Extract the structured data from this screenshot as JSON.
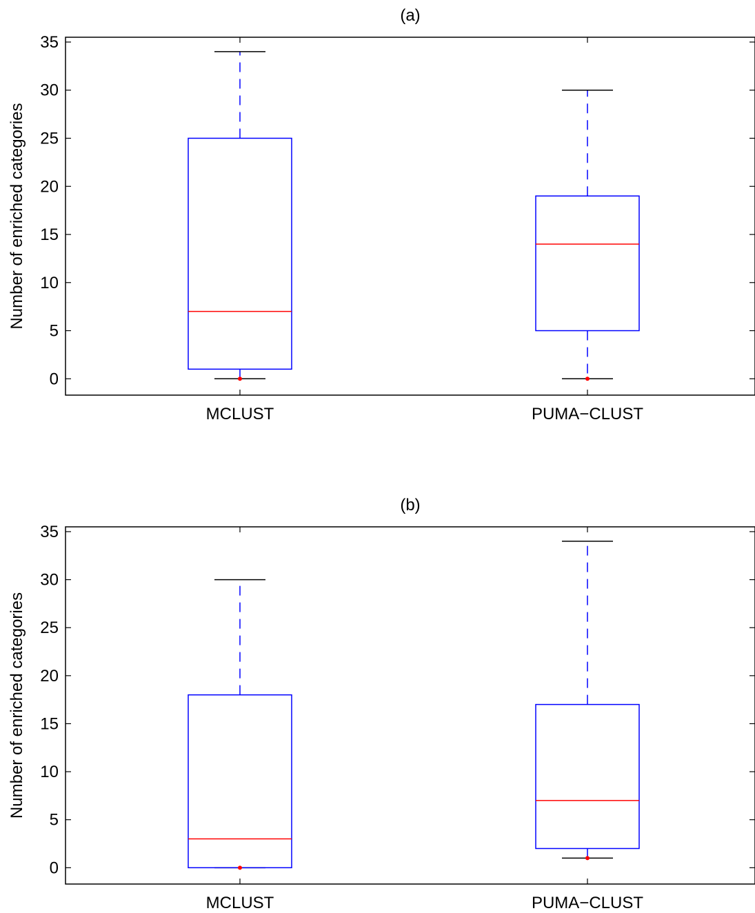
{
  "chart_data": [
    {
      "type": "box",
      "title": "(a)",
      "xlabel": "",
      "ylabel": "Number of enriched categories",
      "categories": [
        "MCLUST",
        "PUMA−CLUST"
      ],
      "ylim": [
        -1.7,
        35.5
      ],
      "yticks": [
        0,
        5,
        10,
        15,
        20,
        25,
        30,
        35
      ],
      "grid": false,
      "boxes": [
        {
          "category": "MCLUST",
          "whisker_low": 0,
          "q1": 1,
          "median": 7,
          "q3": 25,
          "whisker_high": 34,
          "outliers": [
            0
          ]
        },
        {
          "category": "PUMA−CLUST",
          "whisker_low": 0,
          "q1": 5,
          "median": 14,
          "q3": 19,
          "whisker_high": 30,
          "outliers": [
            0
          ]
        }
      ]
    },
    {
      "type": "box",
      "title": "(b)",
      "xlabel": "",
      "ylabel": "Number of enriched categories",
      "categories": [
        "MCLUST",
        "PUMA−CLUST"
      ],
      "ylim": [
        -1.7,
        35.5
      ],
      "yticks": [
        0,
        5,
        10,
        15,
        20,
        25,
        30,
        35
      ],
      "grid": false,
      "boxes": [
        {
          "category": "MCLUST",
          "whisker_low": 0,
          "q1": 0,
          "median": 3,
          "q3": 18,
          "whisker_high": 30,
          "outliers": [
            0
          ]
        },
        {
          "category": "PUMA−CLUST",
          "whisker_low": 1,
          "q1": 2,
          "median": 7,
          "q3": 17,
          "whisker_high": 34,
          "outliers": [
            1
          ]
        }
      ]
    }
  ],
  "colors": {
    "box": "#0000ff",
    "median": "#ff0000",
    "whisker_cap": "#000000",
    "outlier": "#ff0000",
    "axes": "#000000"
  }
}
